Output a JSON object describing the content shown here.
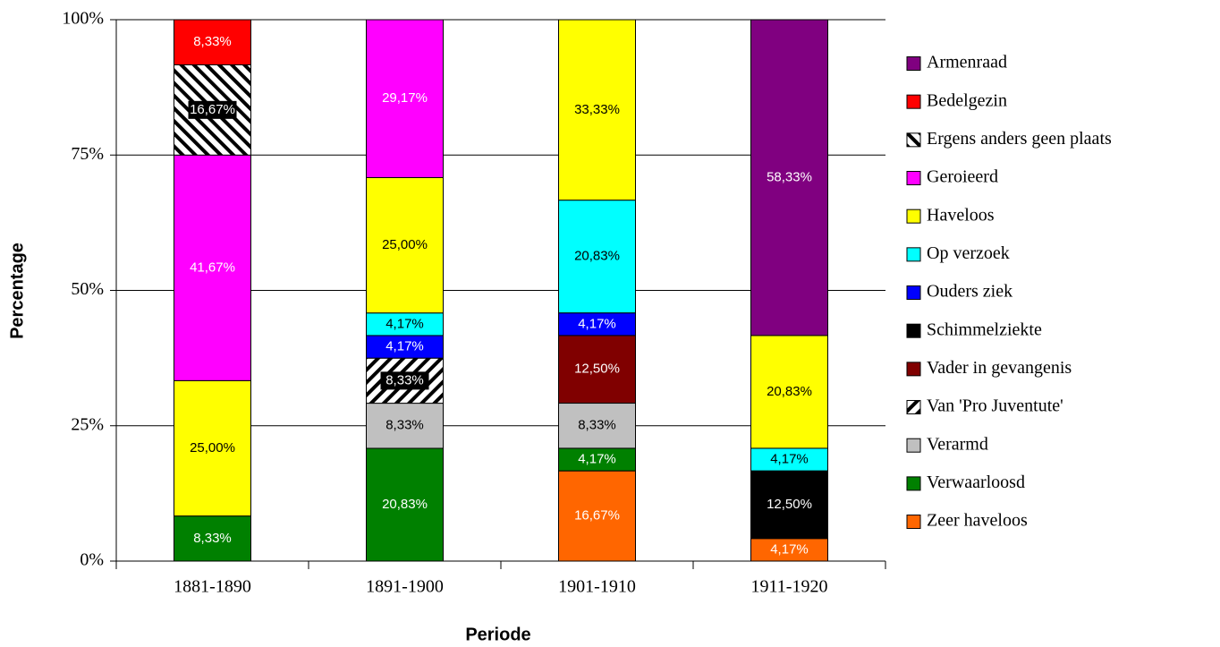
{
  "chart_data": {
    "type": "stacked_bar",
    "y_label": "Percentage",
    "x_label": "Periode",
    "categories": [
      "1881-1890",
      "1891-1900",
      "1901-1910",
      "1911-1920"
    ],
    "ylim": [
      0,
      100
    ],
    "yticks": [
      {
        "value": 0,
        "label": "0%"
      },
      {
        "value": 25,
        "label": "25%"
      },
      {
        "value": 50,
        "label": "50%"
      },
      {
        "value": 75,
        "label": "75%"
      },
      {
        "value": 100,
        "label": "100%"
      }
    ],
    "grid": true,
    "legend": "right",
    "series": [
      {
        "name": "Armenraad",
        "color": "#800080",
        "values": [
          null,
          null,
          null,
          58.33
        ],
        "value_labels": [
          null,
          null,
          null,
          "58,33%"
        ]
      },
      {
        "name": "Bedelgezin",
        "color": "#ff0000",
        "values": [
          8.33,
          null,
          null,
          null
        ],
        "value_labels": [
          "8,33%",
          null,
          null,
          null
        ]
      },
      {
        "name": "Ergens anders geen plaats",
        "color": "#000000",
        "pattern": "hatch-back",
        "values": [
          16.67,
          null,
          null,
          null
        ],
        "value_labels": [
          "16,67%",
          null,
          null,
          null
        ]
      },
      {
        "name": "Geroieerd",
        "color": "#ff00ff",
        "values": [
          41.67,
          29.17,
          null,
          null
        ],
        "value_labels": [
          "41,67%",
          "29,17%",
          null,
          null
        ]
      },
      {
        "name": "Haveloos",
        "color": "#ffff00",
        "values": [
          25.0,
          25.0,
          33.33,
          20.83
        ],
        "value_labels": [
          "25,00%",
          "25,00%",
          "33,33%",
          "20,83%"
        ]
      },
      {
        "name": "Op verzoek",
        "color": "#00ffff",
        "values": [
          null,
          4.17,
          20.83,
          4.17
        ],
        "value_labels": [
          null,
          "4,17%",
          "20,83%",
          "4,17%"
        ]
      },
      {
        "name": "Ouders ziek",
        "color": "#0000ff",
        "values": [
          null,
          4.17,
          4.17,
          null
        ],
        "value_labels": [
          null,
          "4,17%",
          "4,17%",
          null
        ]
      },
      {
        "name": "Schimmelziekte",
        "color": "#000000",
        "values": [
          null,
          null,
          null,
          12.5
        ],
        "value_labels": [
          null,
          null,
          null,
          "12,50%"
        ]
      },
      {
        "name": "Vader in gevangenis",
        "color": "#800000",
        "values": [
          null,
          null,
          12.5,
          null
        ],
        "value_labels": [
          null,
          null,
          "12,50%",
          null
        ]
      },
      {
        "name": "Van 'Pro Juventute'",
        "color": "#000000",
        "pattern": "hatch-fwd",
        "values": [
          null,
          8.33,
          null,
          null
        ],
        "value_labels": [
          null,
          "8,33%",
          null,
          null
        ]
      },
      {
        "name": "Verarmd",
        "color": "#c0c0c0",
        "values": [
          null,
          8.33,
          8.33,
          null
        ],
        "value_labels": [
          null,
          "8,33%",
          "8,33%",
          null
        ]
      },
      {
        "name": "Verwaarloosd",
        "color": "#008000",
        "values": [
          8.33,
          20.83,
          4.17,
          null
        ],
        "value_labels": [
          "8,33%",
          "20,83%",
          "4,17%",
          null
        ]
      },
      {
        "name": "Zeer haveloos",
        "color": "#ff6600",
        "values": [
          null,
          null,
          16.67,
          4.17
        ],
        "value_labels": [
          null,
          null,
          "16,67%",
          "4,17%"
        ]
      }
    ]
  }
}
